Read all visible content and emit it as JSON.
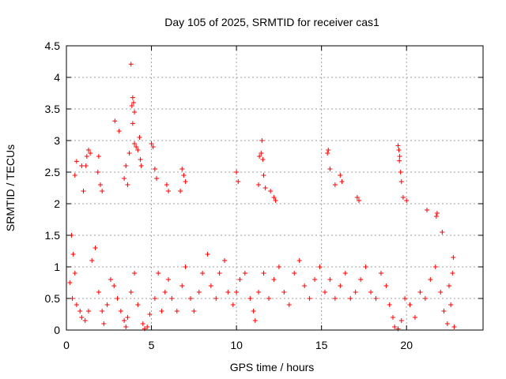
{
  "chart_data": {
    "type": "scatter",
    "title": "Day 105 of 2025, SRMTID for receiver cas1",
    "xlabel": "GPS time / hours",
    "ylabel": "SRMTID / TECUs",
    "xlim": [
      0,
      24.5
    ],
    "ylim": [
      0,
      4.5
    ],
    "x_ticks": [
      0,
      5,
      10,
      15,
      20
    ],
    "y_ticks": [
      0,
      0.5,
      1,
      1.5,
      2,
      2.5,
      3,
      3.5,
      4,
      4.5
    ],
    "x_tick_labels": [
      "0",
      "5",
      "10",
      "15",
      "20"
    ],
    "y_tick_labels": [
      "0",
      "0.5",
      "1",
      "1.5",
      "2",
      "2.5",
      "3",
      "3.5",
      "4",
      "4.5"
    ],
    "grid": true,
    "marker": "+",
    "color": "#ff0000",
    "series": [
      {
        "name": "SRMTID",
        "points": [
          [
            3.8,
            4.21
          ],
          [
            3.9,
            3.68
          ],
          [
            3.95,
            3.6
          ],
          [
            3.85,
            3.55
          ],
          [
            4.0,
            3.45
          ],
          [
            3.9,
            3.27
          ],
          [
            2.85,
            3.31
          ],
          [
            3.1,
            3.15
          ],
          [
            4.3,
            3.05
          ],
          [
            4.0,
            2.95
          ],
          [
            4.1,
            2.9
          ],
          [
            4.2,
            2.85
          ],
          [
            4.35,
            2.7
          ],
          [
            4.4,
            2.6
          ],
          [
            3.7,
            2.8
          ],
          [
            3.5,
            2.6
          ],
          [
            3.4,
            2.4
          ],
          [
            3.6,
            2.3
          ],
          [
            1.3,
            2.85
          ],
          [
            1.4,
            2.8
          ],
          [
            1.2,
            2.75
          ],
          [
            1.15,
            2.6
          ],
          [
            1.9,
            2.75
          ],
          [
            1.85,
            2.5
          ],
          [
            0.6,
            2.67
          ],
          [
            0.9,
            2.6
          ],
          [
            0.5,
            2.45
          ],
          [
            2.0,
            2.3
          ],
          [
            2.1,
            2.2
          ],
          [
            1.0,
            2.2
          ],
          [
            5.0,
            2.95
          ],
          [
            5.1,
            2.9
          ],
          [
            5.2,
            2.55
          ],
          [
            5.3,
            2.4
          ],
          [
            5.9,
            2.3
          ],
          [
            6.0,
            2.2
          ],
          [
            6.8,
            2.55
          ],
          [
            6.9,
            2.45
          ],
          [
            7.0,
            2.35
          ],
          [
            6.7,
            2.2
          ],
          [
            10.0,
            2.5
          ],
          [
            10.1,
            2.35
          ],
          [
            11.5,
            3.0
          ],
          [
            11.45,
            2.8
          ],
          [
            11.35,
            2.75
          ],
          [
            11.55,
            2.7
          ],
          [
            11.6,
            2.45
          ],
          [
            11.3,
            2.3
          ],
          [
            11.7,
            2.25
          ],
          [
            12.0,
            2.2
          ],
          [
            12.2,
            2.1
          ],
          [
            12.3,
            2.05
          ],
          [
            15.4,
            2.85
          ],
          [
            15.35,
            2.8
          ],
          [
            15.5,
            2.55
          ],
          [
            16.1,
            2.45
          ],
          [
            16.2,
            2.35
          ],
          [
            15.8,
            2.3
          ],
          [
            17.1,
            2.1
          ],
          [
            17.2,
            2.05
          ],
          [
            19.5,
            2.92
          ],
          [
            19.55,
            2.85
          ],
          [
            19.6,
            2.75
          ],
          [
            19.58,
            2.68
          ],
          [
            19.65,
            2.5
          ],
          [
            19.7,
            2.35
          ],
          [
            19.8,
            2.1
          ],
          [
            20.0,
            2.05
          ],
          [
            21.2,
            1.9
          ],
          [
            21.8,
            1.85
          ],
          [
            21.75,
            1.8
          ],
          [
            22.1,
            1.55
          ],
          [
            0.3,
            1.5
          ],
          [
            0.4,
            1.2
          ],
          [
            0.5,
            0.9
          ],
          [
            0.2,
            0.75
          ],
          [
            0.35,
            0.5
          ],
          [
            0.6,
            0.4
          ],
          [
            0.8,
            0.3
          ],
          [
            0.9,
            0.2
          ],
          [
            1.1,
            0.15
          ],
          [
            1.3,
            0.3
          ],
          [
            1.5,
            1.1
          ],
          [
            1.7,
            1.3
          ],
          [
            1.9,
            0.6
          ],
          [
            2.1,
            0.3
          ],
          [
            2.2,
            0.1
          ],
          [
            2.4,
            0.4
          ],
          [
            2.6,
            0.8
          ],
          [
            2.8,
            0.7
          ],
          [
            3.0,
            0.5
          ],
          [
            3.2,
            0.3
          ],
          [
            3.4,
            0.15
          ],
          [
            3.5,
            0.05
          ],
          [
            3.6,
            0.2
          ],
          [
            3.8,
            0.6
          ],
          [
            4.0,
            0.9
          ],
          [
            4.2,
            0.4
          ],
          [
            4.5,
            0.1
          ],
          [
            4.6,
            0.02
          ],
          [
            4.75,
            0.05
          ],
          [
            4.9,
            0.25
          ],
          [
            5.2,
            0.5
          ],
          [
            5.4,
            0.9
          ],
          [
            5.6,
            0.3
          ],
          [
            5.8,
            0.6
          ],
          [
            6.0,
            0.8
          ],
          [
            6.2,
            0.5
          ],
          [
            6.5,
            0.3
          ],
          [
            6.8,
            0.7
          ],
          [
            7.0,
            1.0
          ],
          [
            7.3,
            0.5
          ],
          [
            7.5,
            0.3
          ],
          [
            7.8,
            0.6
          ],
          [
            8.0,
            0.9
          ],
          [
            8.3,
            1.2
          ],
          [
            8.5,
            0.7
          ],
          [
            8.8,
            0.5
          ],
          [
            9.0,
            0.9
          ],
          [
            9.3,
            1.1
          ],
          [
            9.5,
            0.6
          ],
          [
            9.8,
            0.4
          ],
          [
            10.0,
            0.6
          ],
          [
            10.2,
            0.8
          ],
          [
            10.5,
            0.9
          ],
          [
            10.8,
            0.5
          ],
          [
            11.0,
            0.3
          ],
          [
            11.1,
            0.15
          ],
          [
            11.3,
            0.6
          ],
          [
            11.6,
            0.9
          ],
          [
            11.9,
            0.5
          ],
          [
            12.2,
            0.8
          ],
          [
            12.5,
            1.0
          ],
          [
            12.8,
            0.6
          ],
          [
            13.1,
            0.4
          ],
          [
            13.4,
            0.9
          ],
          [
            13.7,
            1.1
          ],
          [
            14.0,
            0.7
          ],
          [
            14.3,
            0.5
          ],
          [
            14.6,
            0.8
          ],
          [
            14.9,
            1.0
          ],
          [
            15.2,
            0.6
          ],
          [
            15.5,
            0.8
          ],
          [
            15.8,
            0.5
          ],
          [
            16.1,
            0.7
          ],
          [
            16.4,
            0.9
          ],
          [
            16.7,
            0.5
          ],
          [
            17.0,
            0.6
          ],
          [
            17.3,
            0.8
          ],
          [
            17.6,
            1.0
          ],
          [
            17.9,
            0.6
          ],
          [
            18.2,
            0.5
          ],
          [
            18.5,
            0.9
          ],
          [
            18.8,
            0.7
          ],
          [
            19.0,
            0.4
          ],
          [
            19.2,
            0.2
          ],
          [
            19.3,
            0.05
          ],
          [
            19.5,
            0.02
          ],
          [
            19.7,
            0.15
          ],
          [
            19.9,
            0.5
          ],
          [
            20.2,
            0.4
          ],
          [
            20.5,
            0.2
          ],
          [
            20.8,
            0.6
          ],
          [
            21.1,
            0.5
          ],
          [
            21.4,
            0.8
          ],
          [
            21.7,
            1.0
          ],
          [
            22.0,
            0.6
          ],
          [
            22.2,
            0.3
          ],
          [
            22.4,
            0.1
          ],
          [
            22.6,
            0.4
          ],
          [
            22.7,
            0.9
          ],
          [
            22.75,
            1.15
          ],
          [
            22.8,
            0.05
          ],
          [
            22.5,
            0.7
          ]
        ]
      }
    ]
  }
}
